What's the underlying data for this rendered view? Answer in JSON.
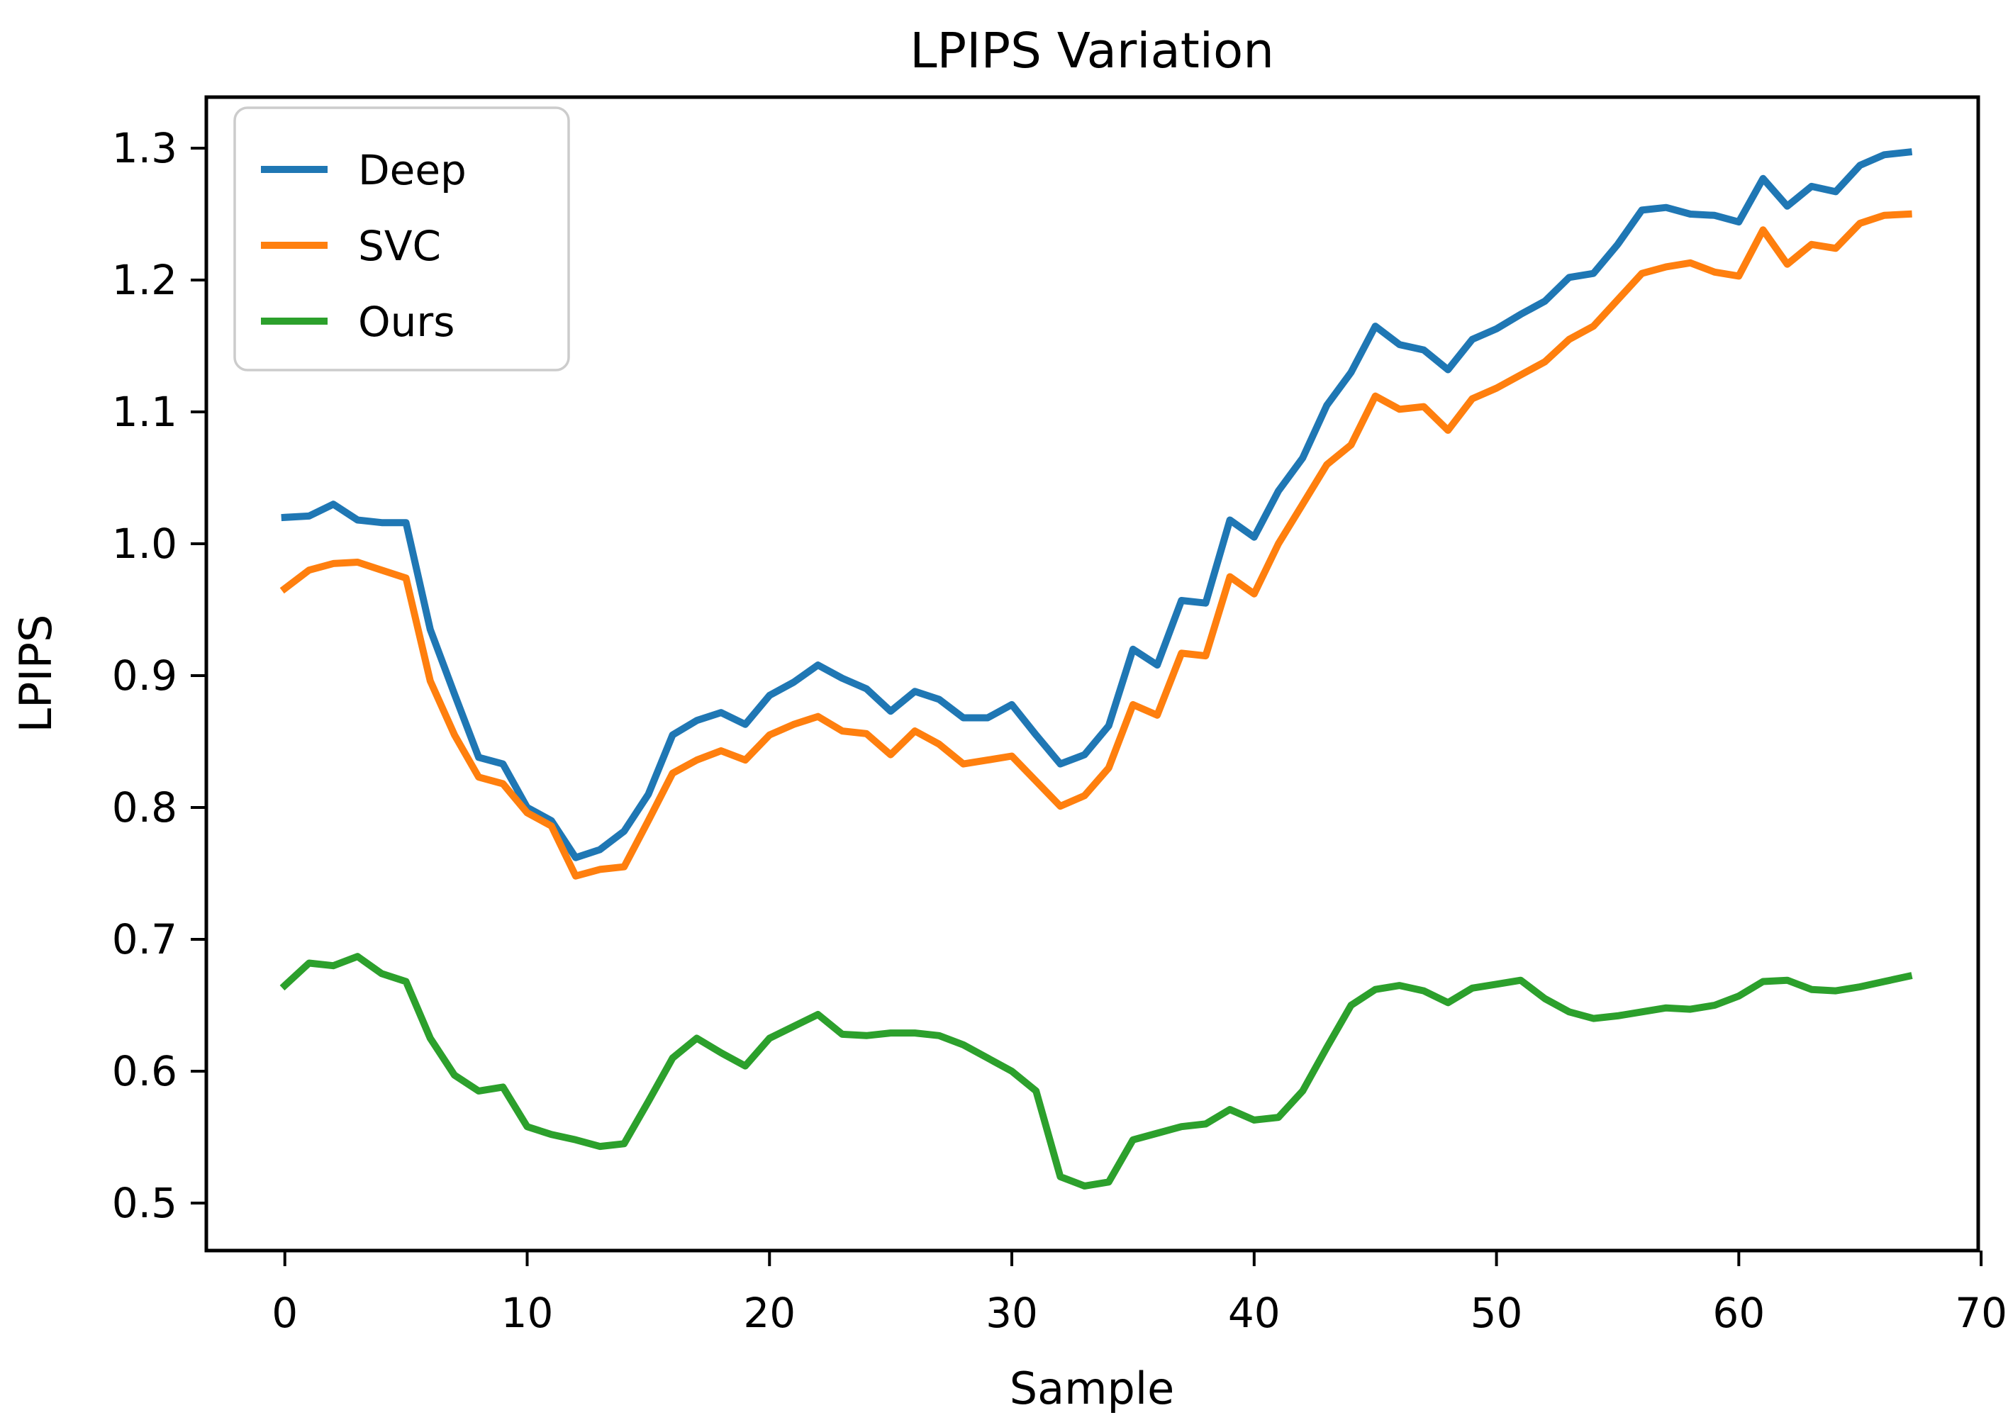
{
  "chart_data": {
    "type": "line",
    "title": "LPIPS Variation",
    "xlabel": "Sample",
    "ylabel": "LPIPS",
    "x": {
      "start": 0,
      "step": 1,
      "count": 68
    },
    "xlim": [
      -3.24,
      69.88
    ],
    "ylim": [
      0.464,
      1.3387
    ],
    "xticks": [
      0,
      10,
      20,
      30,
      40,
      50,
      60,
      70
    ],
    "yticks": [
      0.5,
      0.6,
      0.7,
      0.8,
      0.9,
      1.0,
      1.1,
      1.2,
      1.3
    ],
    "grid": false,
    "legend_position": "upper left",
    "axis_color": "#000000",
    "background_color": "#ffffff",
    "series": [
      {
        "name": "Deep",
        "color": "#1f77b4",
        "values": [
          1.02,
          1.021,
          1.03,
          1.018,
          1.016,
          1.016,
          0.935,
          0.886,
          0.838,
          0.833,
          0.8,
          0.79,
          0.762,
          0.768,
          0.782,
          0.81,
          0.855,
          0.866,
          0.872,
          0.863,
          0.885,
          0.895,
          0.908,
          0.898,
          0.89,
          0.873,
          0.888,
          0.882,
          0.868,
          0.868,
          0.878,
          0.855,
          0.833,
          0.84,
          0.862,
          0.92,
          0.908,
          0.957,
          0.955,
          1.018,
          1.005,
          1.04,
          1.065,
          1.105,
          1.13,
          1.165,
          1.151,
          1.147,
          1.132,
          1.155,
          1.163,
          1.174,
          1.184,
          1.202,
          1.205,
          1.227,
          1.253,
          1.255,
          1.25,
          1.249,
          1.244,
          1.277,
          1.256,
          1.271,
          1.267,
          1.287,
          1.295,
          1.297
        ]
      },
      {
        "name": "SVC",
        "color": "#ff7f0e",
        "values": [
          0.966,
          0.98,
          0.985,
          0.986,
          0.98,
          0.974,
          0.896,
          0.855,
          0.823,
          0.818,
          0.796,
          0.786,
          0.748,
          0.753,
          0.755,
          0.79,
          0.826,
          0.836,
          0.843,
          0.836,
          0.855,
          0.863,
          0.869,
          0.858,
          0.856,
          0.84,
          0.858,
          0.848,
          0.833,
          0.836,
          0.839,
          0.82,
          0.801,
          0.809,
          0.83,
          0.878,
          0.87,
          0.917,
          0.915,
          0.975,
          0.962,
          1.0,
          1.03,
          1.06,
          1.075,
          1.112,
          1.102,
          1.104,
          1.086,
          1.11,
          1.118,
          1.128,
          1.138,
          1.155,
          1.165,
          1.185,
          1.205,
          1.21,
          1.213,
          1.206,
          1.203,
          1.238,
          1.212,
          1.227,
          1.224,
          1.243,
          1.249,
          1.25
        ]
      },
      {
        "name": "Ours",
        "color": "#2ca02c",
        "values": [
          0.665,
          0.682,
          0.68,
          0.687,
          0.674,
          0.668,
          0.625,
          0.597,
          0.585,
          0.588,
          0.558,
          0.552,
          0.548,
          0.543,
          0.545,
          0.577,
          0.61,
          0.625,
          0.614,
          0.604,
          0.625,
          0.634,
          0.643,
          0.628,
          0.627,
          0.629,
          0.629,
          0.627,
          0.62,
          0.61,
          0.6,
          0.585,
          0.52,
          0.513,
          0.516,
          0.548,
          0.553,
          0.558,
          0.56,
          0.571,
          0.563,
          0.565,
          0.585,
          0.618,
          0.65,
          0.662,
          0.665,
          0.661,
          0.652,
          0.663,
          0.666,
          0.669,
          0.655,
          0.645,
          0.64,
          0.642,
          0.645,
          0.648,
          0.647,
          0.65,
          0.657,
          0.668,
          0.669,
          0.662,
          0.661,
          0.664,
          0.668,
          0.672
        ]
      }
    ]
  }
}
